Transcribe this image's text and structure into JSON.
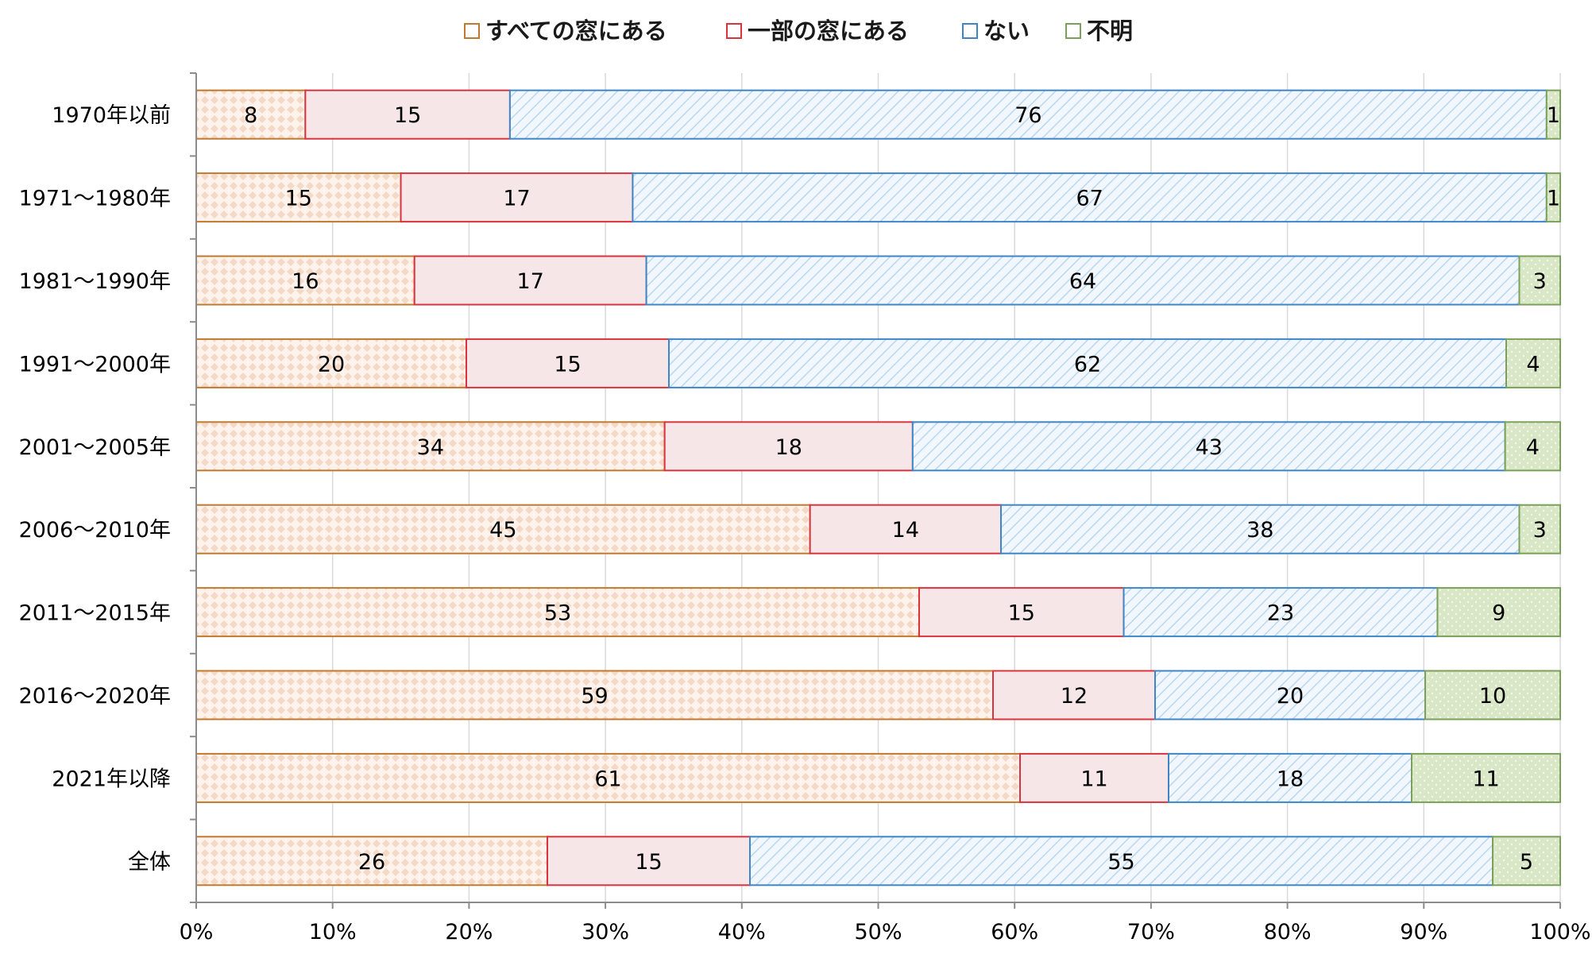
{
  "chart_data": {
    "type": "bar",
    "orientation": "horizontal",
    "stacked": true,
    "percent_stacked": true,
    "categories": [
      "1970年以前",
      "1971～1980年",
      "1981～1990年",
      "1991～2000年",
      "2001～2005年",
      "2006～2010年",
      "2011～2015年",
      "2016～2020年",
      "2021年以降",
      "全体"
    ],
    "series": [
      {
        "name": "すべての窓にある",
        "values": [
          8,
          15,
          16,
          20,
          34,
          45,
          53,
          59,
          61,
          26
        ],
        "color": "#c07a30",
        "fill": "#fbe9dc",
        "pattern": "diamond-dots"
      },
      {
        "name": "一部の窓にある",
        "values": [
          15,
          17,
          17,
          15,
          18,
          14,
          15,
          12,
          11,
          15
        ],
        "color": "#d9333f",
        "fill": "#f7e6e7",
        "pattern": "solid"
      },
      {
        "name": "ない",
        "values": [
          76,
          67,
          64,
          62,
          43,
          38,
          23,
          20,
          18,
          55
        ],
        "color": "#3f86c8",
        "fill": "#eaf3fa",
        "pattern": "diagonal-hatch"
      },
      {
        "name": "不明",
        "values": [
          1,
          1,
          3,
          4,
          4,
          3,
          9,
          10,
          11,
          5
        ],
        "color": "#7aa05a",
        "fill": "#d9e7c6",
        "pattern": "dots"
      }
    ],
    "xlim": [
      0,
      100
    ],
    "xticks": [
      "0%",
      "10%",
      "20%",
      "30%",
      "40%",
      "50%",
      "60%",
      "70%",
      "80%",
      "90%",
      "100%"
    ],
    "grid": "vertical",
    "legend_position": "top-center",
    "title": "",
    "xlabel": "",
    "ylabel": ""
  }
}
